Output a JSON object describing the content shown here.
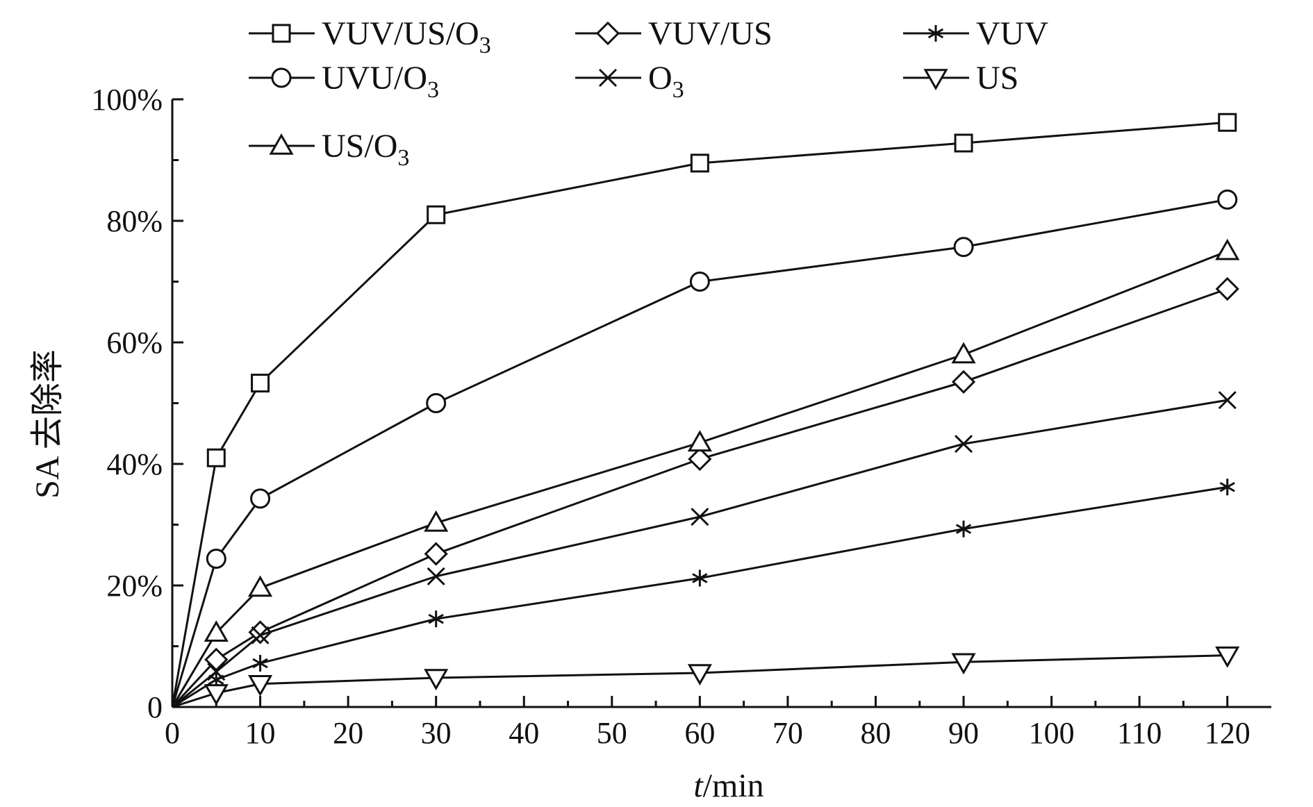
{
  "chart_data": {
    "type": "line",
    "xlabel": {
      "italic": "t",
      "rest": "/min"
    },
    "ylabel": "SA 去除率",
    "xlim": [
      0,
      125
    ],
    "ylim": [
      0,
      100
    ],
    "xticks": [
      0,
      10,
      20,
      30,
      40,
      50,
      60,
      70,
      80,
      90,
      100,
      110,
      120
    ],
    "yticks": [
      {
        "value": 0,
        "label": "0"
      },
      {
        "value": 20,
        "label": "20%"
      },
      {
        "value": 40,
        "label": "40%"
      },
      {
        "value": 60,
        "label": "60%"
      },
      {
        "value": 80,
        "label": "80%"
      },
      {
        "value": 100,
        "label": "100%"
      }
    ],
    "x": [
      0,
      5,
      10,
      30,
      60,
      90,
      120
    ],
    "series": [
      {
        "name": "VUV/US/O3",
        "label": "VUV/US/O",
        "sub": "3",
        "marker": "square",
        "values": [
          0,
          41,
          53.3,
          81,
          89.5,
          92.8,
          96.2
        ]
      },
      {
        "name": "VUV/US",
        "label": "VUV/US",
        "sub": "",
        "marker": "diamond",
        "values": [
          0,
          7.8,
          12.3,
          25.2,
          40.8,
          53.5,
          68.8
        ]
      },
      {
        "name": "VUV",
        "label": "VUV",
        "sub": "",
        "marker": "asterisk",
        "values": [
          0,
          4.5,
          7.2,
          14.5,
          21.2,
          29.3,
          36.2
        ]
      },
      {
        "name": "UVU/O3",
        "label": "UVU/O",
        "sub": "3",
        "marker": "circle",
        "values": [
          0,
          24.4,
          34.3,
          50,
          70,
          75.7,
          83.5
        ]
      },
      {
        "name": "O3",
        "label": "O",
        "sub": "3",
        "marker": "x",
        "values": [
          0,
          5.8,
          11.8,
          21.5,
          31.3,
          43.3,
          50.5
        ]
      },
      {
        "name": "US",
        "label": "US",
        "sub": "",
        "marker": "triangle-down",
        "values": [
          0,
          2.3,
          3.8,
          4.8,
          5.6,
          7.4,
          8.5
        ]
      },
      {
        "name": "US/O3",
        "label": "US/O",
        "sub": "3",
        "marker": "triangle-up",
        "values": [
          0,
          12.2,
          19.6,
          30.3,
          43.5,
          58,
          75
        ]
      }
    ]
  }
}
